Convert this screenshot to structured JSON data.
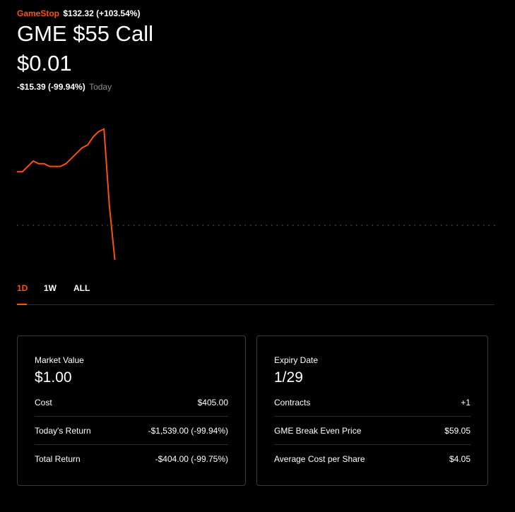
{
  "header": {
    "company_name": "GameStop",
    "stock_price": "$132.32 (+103.54%)",
    "option_title": "GME $55 Call",
    "option_price": "$0.01",
    "change": "-$15.39 (-99.94%)",
    "change_period": "Today"
  },
  "colors": {
    "accent": "#ff5000",
    "background": "#000000",
    "muted_text": "#8c8c8e"
  },
  "chart_data": {
    "type": "line",
    "x": [
      0,
      1,
      2,
      3,
      4,
      5,
      6,
      7,
      8,
      9,
      10,
      11,
      12,
      13,
      14,
      15,
      16,
      17,
      18
    ],
    "values": [
      0.34,
      0.34,
      0.36,
      0.38,
      0.37,
      0.37,
      0.36,
      0.36,
      0.36,
      0.37,
      0.39,
      0.41,
      0.43,
      0.44,
      0.47,
      0.49,
      0.5,
      0.21,
      0.01
    ],
    "ylim": [
      0,
      0.52
    ],
    "baseline": 0.14,
    "grid": false,
    "legend": "none"
  },
  "tabs": [
    {
      "label": "1D",
      "active": true
    },
    {
      "label": "1W",
      "active": false
    },
    {
      "label": "ALL",
      "active": false
    }
  ],
  "position_card": {
    "title": "Market Value",
    "value": "$1.00",
    "rows": [
      {
        "label": "Cost",
        "value": "$405.00"
      },
      {
        "label": "Today's Return",
        "value": "-$1,539.00 (-99.94%)"
      },
      {
        "label": "Total Return",
        "value": "-$404.00 (-99.75%)"
      }
    ]
  },
  "contract_card": {
    "title": "Expiry Date",
    "value": "1/29",
    "rows": [
      {
        "label": "Contracts",
        "value": "+1"
      },
      {
        "label": "GME Break Even Price",
        "value": "$59.05"
      },
      {
        "label": "Average Cost per Share",
        "value": "$4.05"
      }
    ]
  }
}
